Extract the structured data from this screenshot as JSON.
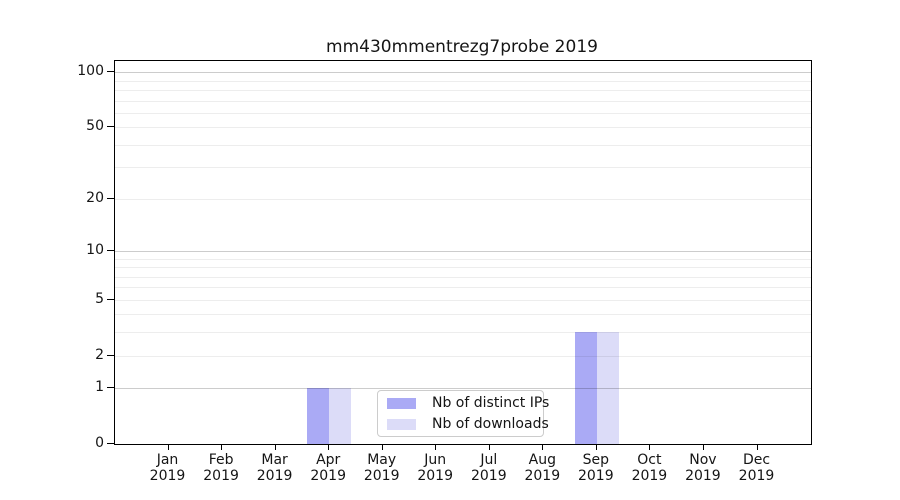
{
  "title": "mm430mmentrezg7probe 2019",
  "chart_data": {
    "type": "bar",
    "title": "mm430mmentrezg7probe 2019",
    "categories": [
      "Jan",
      "Feb",
      "Mar",
      "Apr",
      "May",
      "Jun",
      "Jul",
      "Aug",
      "Sep",
      "Oct",
      "Nov",
      "Dec"
    ],
    "year": "2019",
    "series": [
      {
        "name": "Nb of distinct IPs",
        "color": "#aaaaf5",
        "values": [
          0,
          0,
          0,
          1,
          0,
          0,
          0,
          0,
          3,
          0,
          0,
          0
        ]
      },
      {
        "name": "Nb of downloads",
        "color": "#dcdcf8",
        "values": [
          0,
          0,
          0,
          1,
          0,
          0,
          0,
          0,
          3,
          0,
          0,
          0
        ]
      }
    ],
    "yscale": "log1p",
    "ylabel": "",
    "xlabel": "",
    "yticks": [
      0,
      1,
      2,
      5,
      10,
      20,
      50,
      100
    ],
    "major_gridlines": [
      1,
      10,
      100
    ],
    "minor_gridlines": [
      2,
      3,
      4,
      5,
      6,
      7,
      8,
      9,
      20,
      30,
      40,
      50,
      60,
      70,
      80,
      90
    ],
    "ylim_top": 115,
    "xlim": [
      -1,
      12
    ],
    "grid": true,
    "legend_position": "lower center"
  }
}
